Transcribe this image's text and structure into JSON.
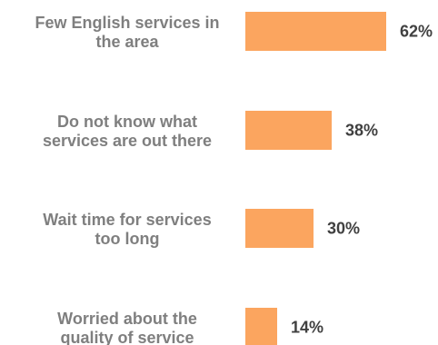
{
  "chart_data": {
    "type": "bar",
    "orientation": "horizontal",
    "categories": [
      [
        "Few English services in",
        "the area"
      ],
      [
        "Do not know what",
        "services are out there"
      ],
      [
        "Wait time for services",
        "too long"
      ],
      [
        "Worried about the",
        "quality of service"
      ]
    ],
    "values": [
      62,
      38,
      30,
      14
    ],
    "value_labels": [
      "62%",
      "38%",
      "30%",
      "14%"
    ],
    "unit": "%",
    "xlim": [
      0,
      100
    ],
    "grid": false,
    "legend": "none",
    "colors": {
      "bar": "#FBA55F",
      "category_text": "#7F7F7F",
      "value_text": "#404040"
    }
  }
}
